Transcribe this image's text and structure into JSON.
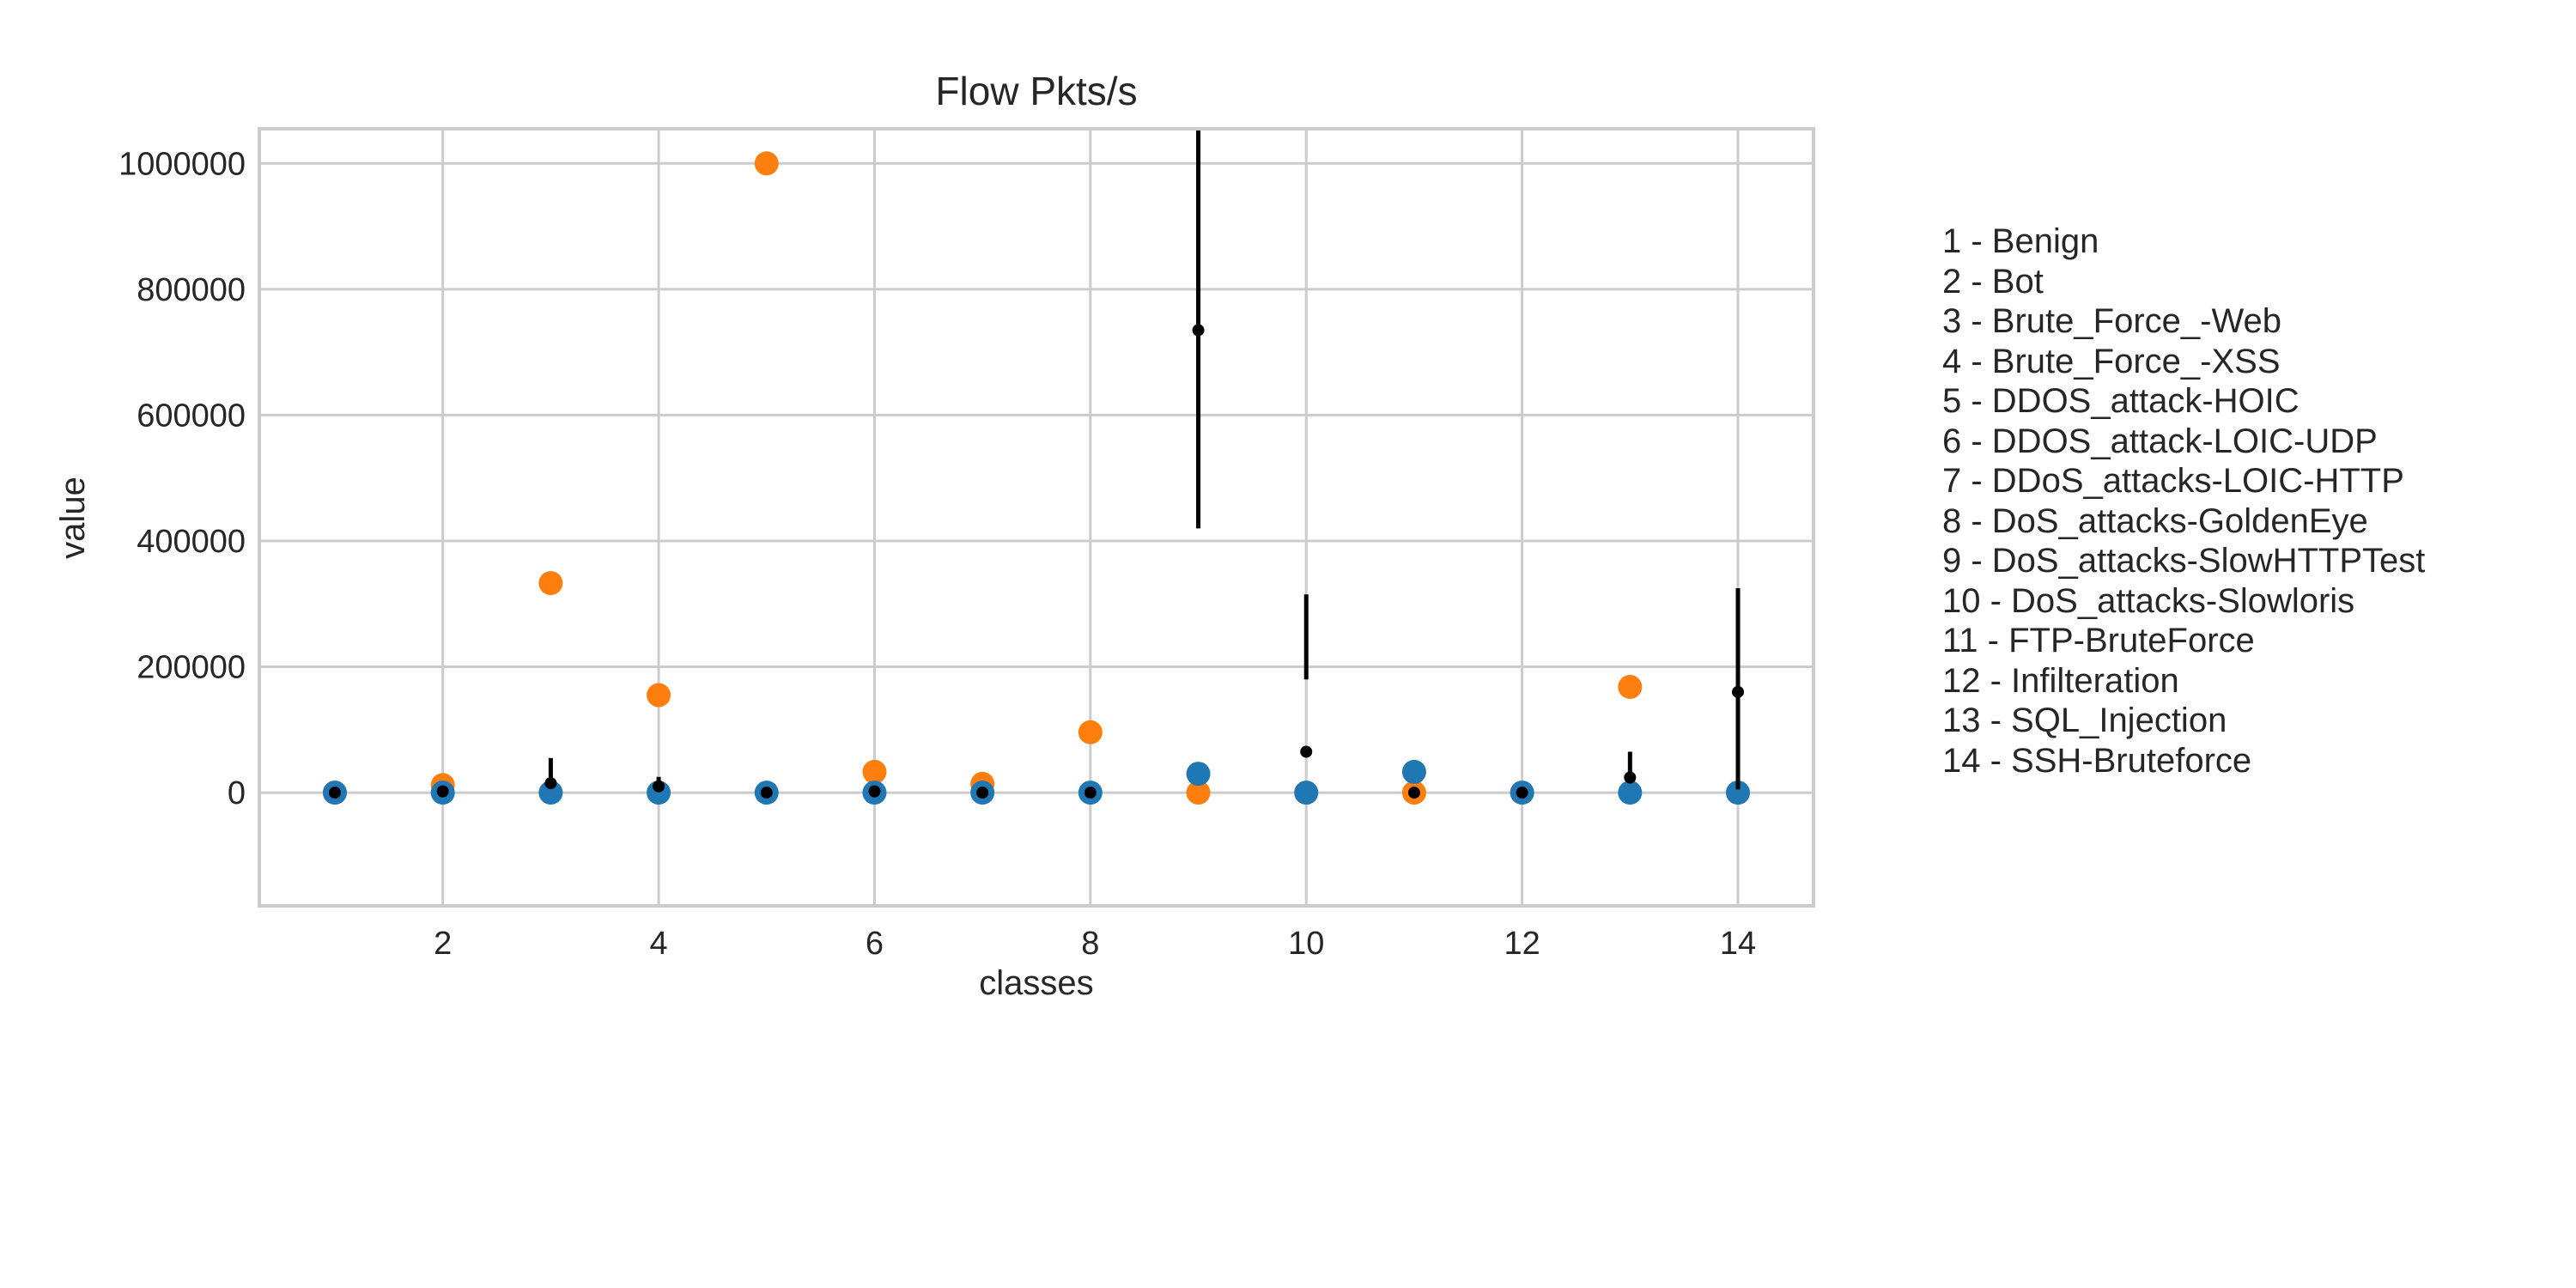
{
  "chart_data": {
    "type": "scatter",
    "title": "Flow Pkts/s",
    "xlabel": "classes",
    "ylabel": "value",
    "xlim": [
      0.3,
      14.7
    ],
    "ylim": [
      -180000,
      1055000
    ],
    "xticks": [
      2,
      4,
      6,
      8,
      10,
      12,
      14
    ],
    "yticks": [
      0,
      200000,
      400000,
      600000,
      800000,
      1000000
    ],
    "grid": true,
    "colors": {
      "series_a": "#ff7f0e",
      "series_b": "#1f77b4",
      "mean": "#000000"
    },
    "series": [
      {
        "x": [
          1,
          2,
          3,
          4,
          5,
          6,
          7,
          8,
          9,
          10,
          11,
          12,
          13,
          14
        ],
        "y": [
          0,
          12000,
          333000,
          155000,
          1000000,
          33000,
          14000,
          96000,
          0,
          0,
          0,
          0,
          168000,
          0
        ]
      },
      {
        "x": [
          1,
          2,
          3,
          4,
          5,
          6,
          7,
          8,
          9,
          10,
          11,
          12,
          13,
          14
        ],
        "y": [
          0,
          0,
          0,
          0,
          0,
          0,
          0,
          0,
          30000,
          0,
          33000,
          0,
          0,
          0
        ]
      },
      {
        "x": [
          1,
          2,
          3,
          4,
          5,
          6,
          7,
          8,
          9,
          10,
          11,
          12,
          13,
          14
        ],
        "y": [
          0,
          2000,
          15000,
          10000,
          0,
          2000,
          0,
          0,
          735000,
          65000,
          0,
          0,
          24000,
          160000
        ],
        "err_low": [
          0,
          0,
          22000,
          8000,
          0,
          0,
          0,
          0,
          420000,
          180000,
          0,
          0,
          15000,
          5000
        ],
        "err_high": [
          0,
          0,
          55000,
          25000,
          0,
          0,
          0,
          0,
          1055000,
          315000,
          0,
          0,
          65000,
          325000
        ]
      }
    ]
  },
  "legend_entries": [
    "1 - Benign",
    "2 - Bot",
    "3 - Brute_Force_-Web",
    "4 - Brute_Force_-XSS",
    "5 - DDOS_attack-HOIC",
    "6 - DDOS_attack-LOIC-UDP",
    "7 - DDoS_attacks-LOIC-HTTP",
    "8 - DoS_attacks-GoldenEye",
    "9 - DoS_attacks-SlowHTTPTest",
    "10 - DoS_attacks-Slowloris",
    "11 - FTP-BruteForce",
    "12 - Infilteration",
    "13 - SQL_Injection",
    "14 - SSH-Bruteforce"
  ]
}
